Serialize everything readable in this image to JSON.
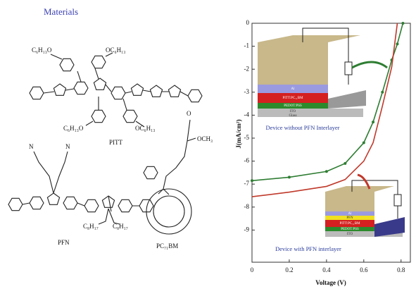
{
  "materials": {
    "title": "Materials",
    "pitt": {
      "name": "PITT",
      "substituents": [
        "C₆H₁₃O",
        "OC₆H₁₃",
        "C₆H₁₃O",
        "OC₆H₁₃"
      ]
    },
    "pfn": {
      "name": "PFN",
      "atoms": [
        "N",
        "N"
      ],
      "substituents": [
        "C₈H₁₇",
        "C₈H₁₇"
      ]
    },
    "pcbm": {
      "name": "PC₇₁BM",
      "atoms": [
        "O",
        "OCH₃"
      ]
    }
  },
  "chart_data": {
    "type": "line",
    "xlabel": "Voltage (V)",
    "ylabel": "J(mA/cm²)",
    "x": [
      0,
      0.2,
      0.4,
      0.5,
      0.6,
      0.65,
      0.7,
      0.75,
      0.78,
      0.81
    ],
    "series": [
      {
        "color": "#2e7d32",
        "marker": "circle",
        "values": [
          -6.85,
          -6.7,
          -6.45,
          -6.1,
          -5.2,
          -4.3,
          -3.0,
          -1.6,
          -0.9,
          0
        ]
      },
      {
        "color": "#c0392b",
        "marker": "none",
        "values": [
          -7.55,
          -7.35,
          -7.1,
          -6.8,
          -6.0,
          -5.2,
          -3.6,
          -1.9,
          0,
          null
        ]
      }
    ],
    "xlim": [
      0,
      0.85
    ],
    "xticks": [
      0,
      0.2,
      0.4,
      0.6,
      0.8
    ],
    "ylim": [
      -10.4,
      0
    ],
    "yticks": [
      0,
      -1,
      -2,
      -3,
      -4,
      -5,
      -6,
      -7,
      -8,
      -9
    ],
    "annotations": {
      "device_without": {
        "caption": "Device without PFN Interlayer",
        "layers": [
          "Al",
          "PITT:PC₇₁BM",
          "PEDOT:PSS",
          "ITO",
          "Glass"
        ]
      },
      "device_with": {
        "caption": "Device with PFN interlayer",
        "layers": [
          "Al",
          "PFN",
          "PITT:PC₇₁BM",
          "PEDOT:PSS",
          "ITO"
        ]
      }
    }
  }
}
